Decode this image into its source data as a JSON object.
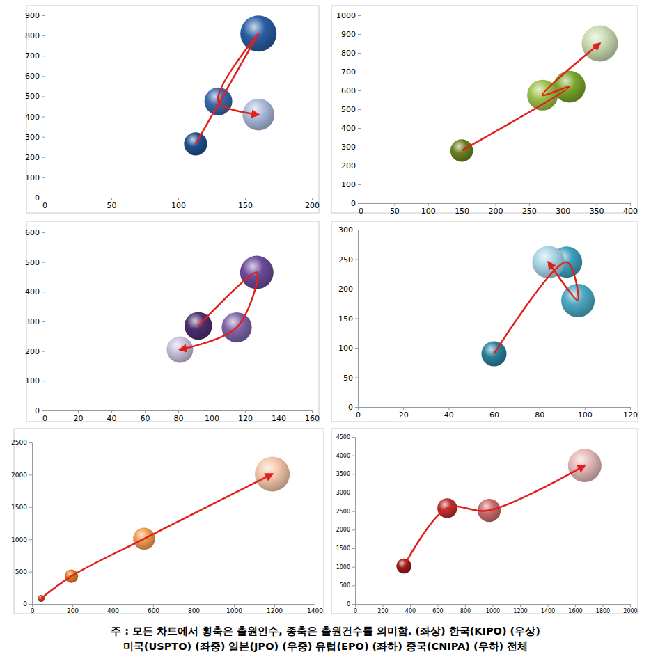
{
  "chart_data": [
    {
      "type": "bubble",
      "x": [
        113,
        160,
        130,
        160
      ],
      "values": [
        265,
        810,
        475,
        410
      ],
      "sizes": [
        45,
        110,
        65,
        85
      ],
      "colors": [
        "#1f4e8c",
        "#2a5da3",
        "#3a68a8",
        "#a9b9da"
      ],
      "line_style": "curved-arrow",
      "xlim": [
        0,
        200
      ],
      "xticks": [
        0,
        50,
        100,
        150,
        200
      ],
      "ylim": [
        0,
        900
      ],
      "yticks": [
        0,
        100,
        200,
        300,
        400,
        500,
        600,
        700,
        800,
        900
      ],
      "grid": false
    },
    {
      "type": "bubble",
      "x": [
        150,
        310,
        270,
        355
      ],
      "values": [
        280,
        620,
        575,
        850
      ],
      "sizes": [
        35,
        70,
        65,
        90
      ],
      "colors": [
        "#6b7f1e",
        "#7aa52a",
        "#9cc04a",
        "#c8dab0"
      ],
      "line_style": "curved-arrow",
      "xlim": [
        0,
        400
      ],
      "xticks": [
        0,
        50,
        100,
        150,
        200,
        250,
        300,
        350,
        400
      ],
      "ylim": [
        0,
        1000
      ],
      "yticks": [
        0,
        100,
        200,
        300,
        400,
        500,
        600,
        700,
        800,
        900,
        1000
      ],
      "grid": false
    },
    {
      "type": "bubble",
      "x": [
        92,
        127,
        115,
        81
      ],
      "values": [
        285,
        465,
        280,
        205
      ],
      "sizes": [
        55,
        80,
        65,
        50
      ],
      "colors": [
        "#4b2f6e",
        "#6a4a9a",
        "#7e65a8",
        "#c9bfdc"
      ],
      "line_style": "curved-arrow",
      "xlim": [
        0,
        160
      ],
      "xticks": [
        0,
        20,
        40,
        60,
        80,
        100,
        120,
        140,
        160
      ],
      "ylim": [
        0,
        600
      ],
      "yticks": [
        0,
        100,
        200,
        300,
        400,
        500,
        600
      ],
      "grid": false
    },
    {
      "type": "bubble",
      "x": [
        60,
        92,
        97,
        84
      ],
      "values": [
        90,
        245,
        180,
        245
      ],
      "sizes": [
        45,
        70,
        80,
        75
      ],
      "colors": [
        "#2a7f9a",
        "#3d9fbc",
        "#4aa8c4",
        "#a6d4e4"
      ],
      "line_style": "curved-arrow",
      "xlim": [
        0,
        120
      ],
      "xticks": [
        0,
        20,
        40,
        60,
        80,
        100,
        120
      ],
      "ylim": [
        0,
        300
      ],
      "yticks": [
        0,
        50,
        100,
        150,
        200,
        250,
        300
      ],
      "grid": false
    },
    {
      "type": "bubble",
      "x": [
        45,
        195,
        555,
        1190
      ],
      "values": [
        85,
        430,
        1010,
        2010
      ],
      "sizes": [
        8,
        30,
        80,
        200
      ],
      "colors": [
        "#b8451a",
        "#e07a22",
        "#f09a50",
        "#f3c6aa"
      ],
      "line_style": "curved-arrow",
      "xlim": [
        0,
        1400
      ],
      "xticks": [
        0,
        200,
        400,
        600,
        800,
        1000,
        1200,
        1400
      ],
      "ylim": [
        0,
        2500
      ],
      "yticks": [
        0,
        500,
        1000,
        1500,
        2000,
        2500
      ],
      "grid": false
    },
    {
      "type": "bubble",
      "x": [
        355,
        670,
        975,
        1670
      ],
      "values": [
        1020,
        2580,
        2520,
        3730
      ],
      "sizes": [
        40,
        70,
        95,
        200
      ],
      "colors": [
        "#9a1a1a",
        "#b83030",
        "#c86a6a",
        "#e4b8b8"
      ],
      "line_style": "curved-arrow",
      "xlim": [
        0,
        2000
      ],
      "xticks": [
        0,
        200,
        400,
        600,
        800,
        1000,
        1200,
        1400,
        1600,
        1800,
        2000
      ],
      "ylim": [
        0,
        4500
      ],
      "yticks": [
        0,
        500,
        1000,
        1500,
        2000,
        2500,
        3000,
        3500,
        4000,
        4500
      ],
      "grid": false
    }
  ],
  "note": [
    "주 : 모든 차트에서 횡축은 출원인수, 종축은 출원건수를 의미함. (좌상) 한국(KIPO) (우상)",
    "미국(USPTO) (좌중) 일본(JPO) (우중) 유럽(EPO) (좌하) 중국(CNIPA) (우하) 전체"
  ]
}
